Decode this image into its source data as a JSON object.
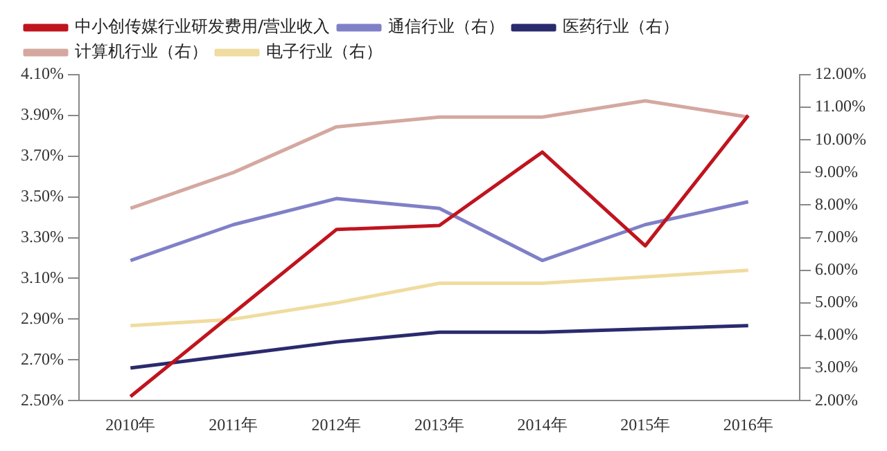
{
  "chart_data": {
    "type": "line",
    "categories": [
      "2010年",
      "2011年",
      "2012年",
      "2013年",
      "2014年",
      "2015年",
      "2016年"
    ],
    "series": [
      {
        "name": "中小创传媒行业研发费用/营业收入",
        "color": "#c0141e",
        "values": [
          2.52,
          2.93,
          3.34,
          3.36,
          3.72,
          3.26,
          3.9
        ]
      },
      {
        "name": "通信行业（右）",
        "color": "#8080c8",
        "axis": "y2",
        "values": [
          6.3,
          7.4,
          8.2,
          7.9,
          6.3,
          7.4,
          8.1
        ]
      },
      {
        "name": "医药行业（右）",
        "color": "#2a2a6e",
        "axis": "y2",
        "values": [
          3.0,
          3.4,
          3.8,
          4.1,
          4.1,
          4.2,
          4.3
        ]
      },
      {
        "name": "计算机行业（右）",
        "color": "#d4a8a0",
        "axis": "y2",
        "values": [
          7.9,
          9.0,
          10.4,
          10.7,
          10.7,
          11.2,
          10.7
        ]
      },
      {
        "name": "电子行业（右）",
        "color": "#f0dca0",
        "axis": "y2",
        "values": [
          4.3,
          4.5,
          5.0,
          5.6,
          5.6,
          5.8,
          6.0
        ]
      }
    ],
    "ylim": [
      2.5,
      4.1
    ],
    "yticks": [
      {
        "value": 2.5,
        "label": "2.50%"
      },
      {
        "value": 2.7,
        "label": "2.70%"
      },
      {
        "value": 2.9,
        "label": "2.90%"
      },
      {
        "value": 3.1,
        "label": "3.10%"
      },
      {
        "value": 3.3,
        "label": "3.30%"
      },
      {
        "value": 3.5,
        "label": "3.50%"
      },
      {
        "value": 3.7,
        "label": "3.70%"
      },
      {
        "value": 3.9,
        "label": "3.90%"
      },
      {
        "value": 4.1,
        "label": "4.10%"
      }
    ],
    "y2lim": [
      2,
      12
    ],
    "y2ticks": [
      {
        "value": 2,
        "label": "2.00%"
      },
      {
        "value": 3,
        "label": "3.00%"
      },
      {
        "value": 4,
        "label": "4.00%"
      },
      {
        "value": 5,
        "label": "5.00%"
      },
      {
        "value": 6,
        "label": "6.00%"
      },
      {
        "value": 7,
        "label": "7.00%"
      },
      {
        "value": 8,
        "label": "8.00%"
      },
      {
        "value": 9,
        "label": "9.00%"
      },
      {
        "value": 10,
        "label": "10.00%"
      },
      {
        "value": 11,
        "label": "11.00%"
      },
      {
        "value": 12,
        "label": "12.00%"
      }
    ],
    "grid": false,
    "legend": "top",
    "marker": "none",
    "line_style": "solid"
  }
}
